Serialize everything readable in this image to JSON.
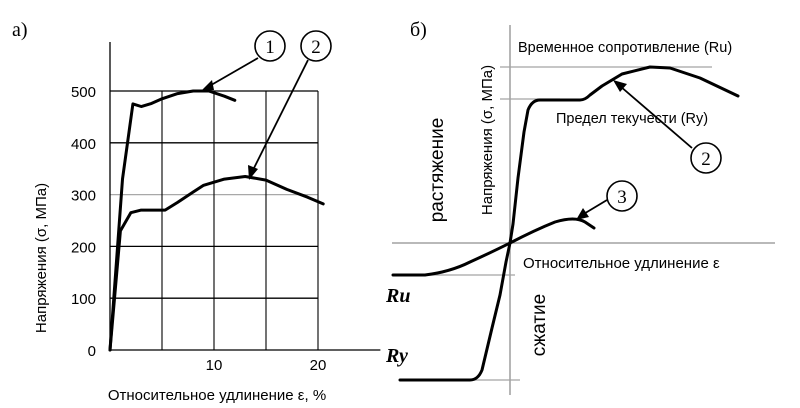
{
  "chart_data": [
    {
      "panel_label": "а)",
      "type": "line",
      "ylabel": "Напряжения (σ, МПа)",
      "xlabel": "Относительное удлинение ε, %",
      "xlim": [
        0,
        26
      ],
      "ylim": [
        0,
        500
      ],
      "x_ticks": [
        10,
        20
      ],
      "y_ticks": [
        0,
        100,
        200,
        300,
        400,
        500
      ],
      "series": [
        {
          "name": "1",
          "x": [
            0,
            1.2,
            2.2,
            3.0,
            4.0,
            5.0,
            6.5,
            8.0,
            9.5,
            11.0,
            12.0
          ],
          "y": [
            0,
            330,
            475,
            470,
            476,
            485,
            495,
            500,
            500,
            490,
            482
          ]
        },
        {
          "name": "2",
          "x": [
            0,
            1.0,
            2.0,
            3.0,
            4.5,
            5.3,
            6.5,
            8.0,
            9.0,
            11.0,
            13.0,
            15.0,
            17.0,
            19.0,
            20.5
          ],
          "y": [
            0,
            230,
            265,
            270,
            270,
            270,
            285,
            305,
            318,
            330,
            335,
            328,
            310,
            295,
            282
          ]
        }
      ]
    },
    {
      "panel_label": "б)",
      "type": "line",
      "ylabel_upper": "Напряжения (σ, МПа)",
      "ylabel_left_upper": "растяжение",
      "ylabel_left_lower": "сжатие",
      "xlabel": "Относительное удлинение ε",
      "ru_label": "Ru",
      "ry_label": "Ry",
      "annotation_ultimate": "Временное сопротивление (Ru)",
      "annotation_yield": "Предел текучести (Ry)",
      "series": [
        {
          "name": "2"
        },
        {
          "name": "3"
        }
      ]
    }
  ]
}
